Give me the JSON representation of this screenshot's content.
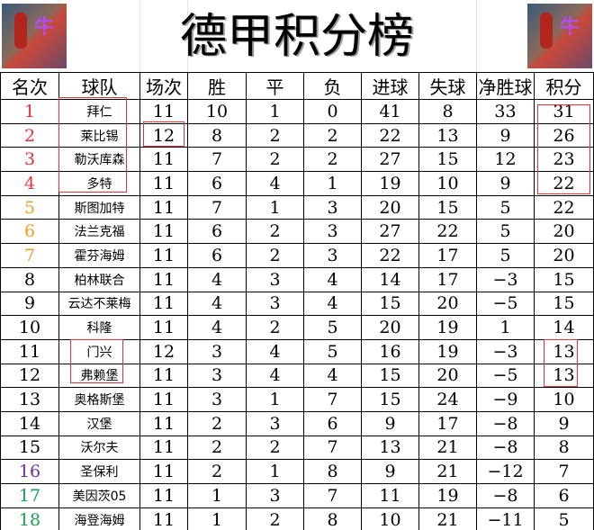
{
  "title": "德甲积分榜",
  "colors": {
    "top4": "#e8303a",
    "europa": "#f0a020",
    "relegation_playoff": "#7030a0",
    "relegation": "#1aa050",
    "highlight_box": "#e8303a"
  },
  "headers": [
    "名次",
    "球队",
    "场次",
    "胜",
    "平",
    "负",
    "进球",
    "失球",
    "净胜球",
    "积分"
  ],
  "rows": [
    [
      "1",
      "拜仁",
      "11",
      "10",
      "1",
      "0",
      "41",
      "8",
      "33",
      "31"
    ],
    [
      "2",
      "莱比锡",
      "12",
      "8",
      "2",
      "2",
      "22",
      "13",
      "9",
      "26"
    ],
    [
      "3",
      "勒沃库森",
      "11",
      "7",
      "2",
      "2",
      "27",
      "15",
      "12",
      "23"
    ],
    [
      "4",
      "多特",
      "11",
      "6",
      "4",
      "1",
      "19",
      "10",
      "9",
      "22"
    ],
    [
      "5",
      "斯图加特",
      "11",
      "7",
      "1",
      "3",
      "20",
      "15",
      "5",
      "22"
    ],
    [
      "6",
      "法兰克福",
      "11",
      "6",
      "2",
      "3",
      "27",
      "22",
      "5",
      "20"
    ],
    [
      "7",
      "霍芬海姆",
      "11",
      "6",
      "2",
      "3",
      "22",
      "17",
      "5",
      "20"
    ],
    [
      "8",
      "柏林联合",
      "11",
      "4",
      "3",
      "4",
      "14",
      "17",
      "−3",
      "15"
    ],
    [
      "9",
      "云达不莱梅",
      "11",
      "4",
      "3",
      "4",
      "15",
      "20",
      "−5",
      "15"
    ],
    [
      "10",
      "科隆",
      "11",
      "4",
      "2",
      "5",
      "20",
      "19",
      "1",
      "14"
    ],
    [
      "11",
      "门兴",
      "12",
      "3",
      "4",
      "5",
      "16",
      "19",
      "−3",
      "13"
    ],
    [
      "12",
      "弗赖堡",
      "11",
      "3",
      "4",
      "4",
      "15",
      "20",
      "−5",
      "13"
    ],
    [
      "13",
      "奥格斯堡",
      "11",
      "3",
      "1",
      "7",
      "15",
      "24",
      "−9",
      "10"
    ],
    [
      "14",
      "汉堡",
      "11",
      "2",
      "3",
      "6",
      "9",
      "17",
      "−8",
      "9"
    ],
    [
      "15",
      "沃尔夫",
      "11",
      "2",
      "2",
      "7",
      "13",
      "21",
      "−8",
      "8"
    ],
    [
      "16",
      "圣保利",
      "11",
      "2",
      "1",
      "8",
      "9",
      "21",
      "−12",
      "7"
    ],
    [
      "17",
      "美因茨05",
      "11",
      "1",
      "3",
      "7",
      "11",
      "19",
      "−8",
      "6"
    ],
    [
      "18",
      "海登海姆",
      "11",
      "1",
      "2",
      "8",
      "10",
      "21",
      "−11",
      "5"
    ]
  ]
}
